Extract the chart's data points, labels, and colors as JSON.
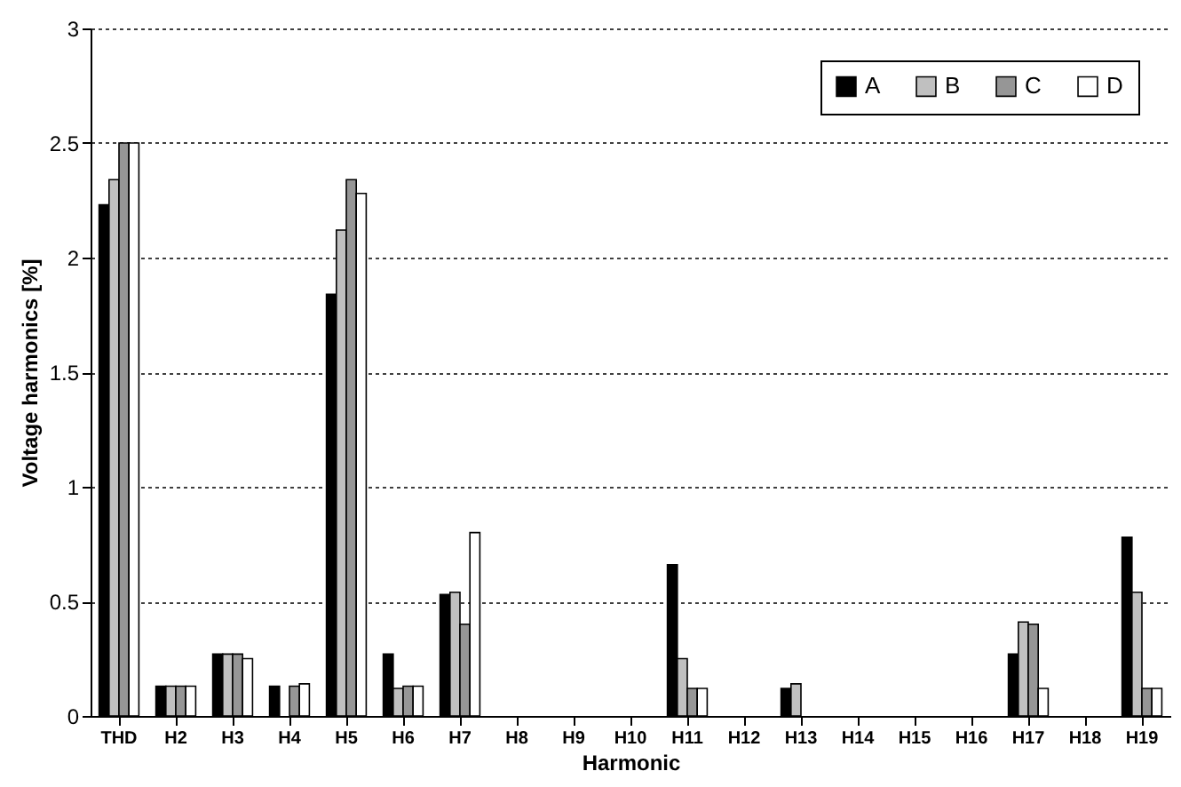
{
  "chart_data": {
    "type": "bar",
    "xlabel": "Harmonic",
    "ylabel": "Voltage harmonics [%]",
    "categories": [
      "THD",
      "H2",
      "H3",
      "H4",
      "H5",
      "H6",
      "H7",
      "H8",
      "H9",
      "H10",
      "H11",
      "H12",
      "H13",
      "H14",
      "H15",
      "H16",
      "H17",
      "H18",
      "H19"
    ],
    "series": [
      {
        "name": "A",
        "color": "#000000",
        "values": [
          2.23,
          0.13,
          0.27,
          0.13,
          1.84,
          0.27,
          0.53,
          null,
          null,
          null,
          0.66,
          null,
          0.12,
          null,
          null,
          null,
          0.27,
          null,
          0.78
        ]
      },
      {
        "name": "B",
        "color": "#c0c0c0",
        "values": [
          2.34,
          0.13,
          0.27,
          null,
          2.12,
          0.12,
          0.54,
          null,
          null,
          null,
          0.25,
          null,
          0.14,
          null,
          null,
          null,
          0.41,
          null,
          0.54
        ]
      },
      {
        "name": "C",
        "color": "#969696",
        "values": [
          2.5,
          0.13,
          0.27,
          0.13,
          2.34,
          0.13,
          0.4,
          null,
          null,
          null,
          0.12,
          null,
          null,
          null,
          null,
          null,
          0.4,
          null,
          0.12
        ]
      },
      {
        "name": "D",
        "color": "#ffffff",
        "values": [
          2.5,
          0.13,
          0.25,
          0.14,
          2.28,
          0.13,
          0.8,
          null,
          null,
          null,
          0.12,
          null,
          null,
          null,
          null,
          null,
          0.12,
          null,
          0.12
        ]
      }
    ],
    "ylim": [
      0,
      3
    ],
    "yticks": [
      0,
      0.5,
      1,
      1.5,
      2,
      2.5,
      3
    ],
    "grid": "y",
    "legend": "top right"
  }
}
